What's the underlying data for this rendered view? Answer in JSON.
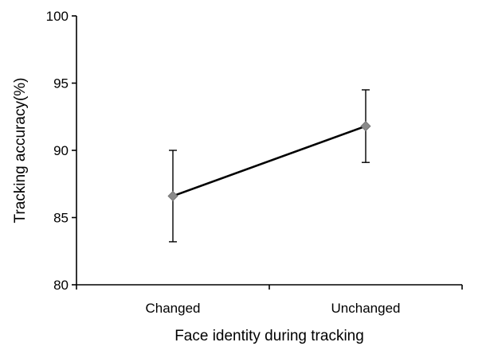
{
  "chart_data": {
    "type": "line",
    "title": "",
    "xlabel": "Face identity during tracking",
    "ylabel": "Tracking accuracy(%)",
    "categories": [
      "Changed",
      "Unchanged"
    ],
    "ylim": [
      80,
      100
    ],
    "yticks": [
      "80",
      "85",
      "90",
      "95",
      "100"
    ],
    "series": [
      {
        "values": [
          86.6,
          91.8
        ],
        "error_low": [
          83.2,
          89.1
        ],
        "error_high": [
          90.0,
          94.5
        ]
      }
    ],
    "grid": false,
    "legend": "none",
    "colors": {
      "line": "#000000",
      "marker": "#8a8a8a",
      "error_bar": "#000000",
      "axis": "#000000"
    },
    "marker": "diamond"
  }
}
